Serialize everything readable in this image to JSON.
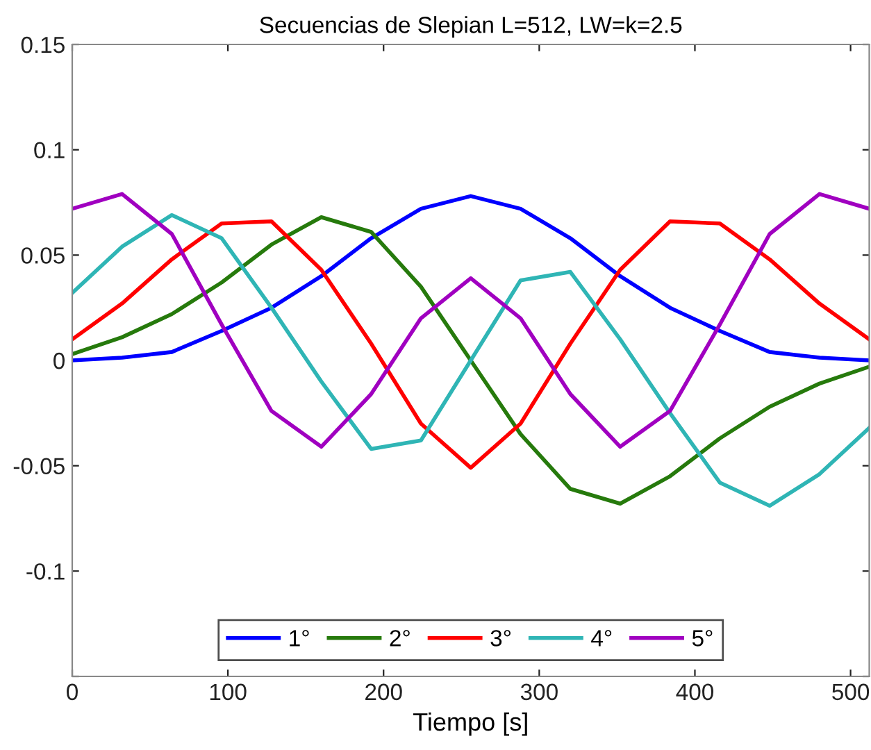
{
  "chart_data": {
    "type": "line",
    "title": "Secuencias de Slepian L=512, LW=k=2.5",
    "xlabel": "Tiempo [s]",
    "x": [
      0,
      32,
      64,
      96,
      128,
      160,
      192,
      224,
      256,
      288,
      320,
      352,
      384,
      416,
      448,
      480,
      512
    ],
    "xlim": [
      0,
      512
    ],
    "xticks": [
      0,
      100,
      200,
      300,
      400,
      500
    ],
    "ylim": [
      -0.15,
      0.15
    ],
    "yticks": [
      {
        "value": -0.15,
        "label": null
      },
      -0.1,
      -0.05,
      0,
      0.05,
      0.1,
      0.15
    ],
    "grid": false,
    "legend": "bottom",
    "line_style": "solid",
    "marker": "none",
    "series": [
      {
        "name": "1°",
        "color": "#0000ff",
        "values": [
          0.0,
          0.0013,
          0.004,
          0.014,
          0.025,
          0.04,
          0.058,
          0.072,
          0.078,
          0.072,
          0.058,
          0.04,
          0.025,
          0.014,
          0.004,
          0.0013,
          0.0
        ]
      },
      {
        "name": "2°",
        "color": "#267a0c",
        "values": [
          0.003,
          0.011,
          0.022,
          0.037,
          0.055,
          0.068,
          0.061,
          0.035,
          0,
          -0.035,
          -0.061,
          -0.068,
          -0.055,
          -0.037,
          -0.022,
          -0.011,
          -0.003
        ]
      },
      {
        "name": "3°",
        "color": "#ff0000",
        "values": [
          0.01,
          0.027,
          0.048,
          0.065,
          0.066,
          0.043,
          0.008,
          -0.03,
          -0.051,
          -0.03,
          0.008,
          0.043,
          0.066,
          0.065,
          0.048,
          0.027,
          0.01
        ]
      },
      {
        "name": "4°",
        "color": "#2fb5b5",
        "values": [
          0.032,
          0.054,
          0.069,
          0.058,
          0.025,
          -0.01,
          -0.042,
          -0.038,
          0,
          0.038,
          0.042,
          0.01,
          -0.025,
          -0.058,
          -0.069,
          -0.054,
          -0.032
        ]
      },
      {
        "name": "5°",
        "color": "#a000c0",
        "values": [
          0.072,
          0.079,
          0.06,
          0.017,
          -0.024,
          -0.041,
          -0.016,
          0.02,
          0.039,
          0.02,
          -0.016,
          -0.041,
          -0.024,
          0.017,
          0.06,
          0.079,
          0.072
        ]
      }
    ]
  }
}
